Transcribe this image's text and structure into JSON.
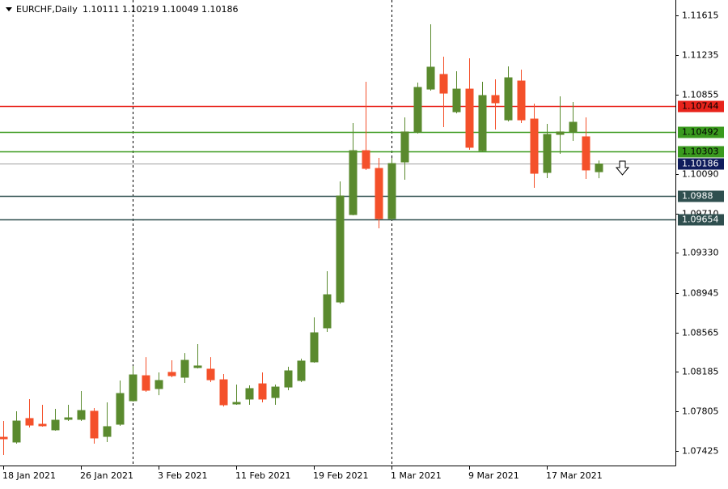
{
  "chart_data": {
    "type": "candlestick",
    "title": "EURCHF,Daily",
    "categories": [
      "18 Jan 2021",
      null,
      null,
      null,
      null,
      null,
      "26 Jan 2021",
      null,
      null,
      null,
      null,
      null,
      "3 Feb 2021",
      null,
      null,
      null,
      null,
      null,
      "11 Feb 2021",
      null,
      null,
      null,
      null,
      null,
      "19 Feb 2021",
      null,
      null,
      null,
      null,
      null,
      "1 Mar 2021",
      null,
      null,
      null,
      null,
      null,
      "9 Mar 2021",
      null,
      null,
      null,
      null,
      null,
      "17 Mar 2021",
      null,
      null,
      null,
      null
    ],
    "open": [
      1.07557,
      1.07511,
      1.07737,
      1.07682,
      1.07628,
      1.07729,
      1.07729,
      1.07807,
      1.07565,
      1.07682,
      1.07908,
      1.08149,
      1.08025,
      1.08181,
      1.08134,
      1.08227,
      1.08212,
      1.0811,
      1.07877,
      1.07924,
      1.08071,
      1.07939,
      1.0804,
      1.08103,
      1.08282,
      1.08609,
      1.08858,
      1.09699,
      1.10314,
      1.10143,
      1.0966,
      1.10205,
      1.10494,
      1.10906,
      1.11047,
      1.10688,
      1.10906,
      1.10314,
      1.10844,
      1.1061,
      1.10984,
      1.10618,
      1.10104,
      1.1047,
      1.10494,
      1.10447,
      1.10111
    ],
    "high": [
      1.07713,
      1.07807,
      1.07924,
      1.07869,
      1.0783,
      1.07869,
      1.08001,
      1.07838,
      1.07892,
      1.08103,
      1.08243,
      1.08328,
      1.08181,
      1.08297,
      1.08367,
      1.08453,
      1.08328,
      1.08165,
      1.08064,
      1.08056,
      1.08181,
      1.08064,
      1.08235,
      1.08313,
      1.0871,
      1.09154,
      1.10018,
      1.10579,
      1.10976,
      1.10244,
      1.10244,
      1.10634,
      1.10969,
      1.11529,
      1.11218,
      1.11078,
      1.11202,
      1.10976,
      1.11,
      1.11124,
      1.11093,
      1.10766,
      1.10571,
      1.10836,
      1.10782,
      1.10634,
      1.10219
    ],
    "low": [
      1.07386,
      1.07495,
      1.07651,
      1.07659,
      1.0762,
      1.07713,
      1.07713,
      1.07495,
      1.07511,
      1.07667,
      1.079,
      1.07994,
      1.07962,
      1.08134,
      1.08079,
      1.08219,
      1.08087,
      1.07853,
      1.07869,
      1.07869,
      1.07892,
      1.07869,
      1.08009,
      1.08087,
      1.08274,
      1.0857,
      1.08842,
      1.09691,
      1.10128,
      1.09567,
      1.09645,
      1.10034,
      1.10478,
      1.10891,
      1.1054,
      1.10673,
      1.10322,
      1.10299,
      1.10517,
      1.10595,
      1.10579,
      1.09956,
      1.1005,
      1.10283,
      1.10408,
      1.10042,
      1.10049
    ],
    "close": [
      1.07542,
      1.07713,
      1.07674,
      1.07667,
      1.07721,
      1.07744,
      1.07814,
      1.0755,
      1.07659,
      1.07978,
      1.08157,
      1.08009,
      1.08103,
      1.08149,
      1.08297,
      1.08243,
      1.0811,
      1.07869,
      1.07892,
      1.08025,
      1.07924,
      1.0804,
      1.08196,
      1.0829,
      1.08562,
      1.08928,
      1.09878,
      1.10314,
      1.10143,
      1.0966,
      1.1019,
      1.10494,
      1.10922,
      1.11117,
      1.10867,
      1.10906,
      1.10346,
      1.10844,
      1.10774,
      1.11015,
      1.1061,
      1.10096,
      1.1047,
      1.10494,
      1.10587,
      1.10128,
      1.10186
    ],
    "up_color": "#5a8a2e",
    "down_color": "#f4502a",
    "ylim": [
      1.07285,
      1.11763
    ],
    "yticks": [
      1.11615,
      1.11235,
      1.10855,
      {
        "value": 1.1009,
        "label": "1.10090"
      },
      {
        "value": 1.0971,
        "label": "1.09710"
      },
      {
        "value": 1.0933,
        "label": "1.09330"
      },
      1.08945,
      1.08565,
      1.08185,
      1.07805,
      1.07425
    ],
    "levels": [
      {
        "value": 1.10744,
        "color": "#e8231b",
        "text_color": "#000000"
      },
      {
        "value": 1.10492,
        "color": "#3a9a1e",
        "text_color": "#000000"
      },
      {
        "value": 1.10303,
        "color": "#3a9a1e",
        "text_color": "#000000"
      },
      {
        "value": 1.0988,
        "color": "#2f4f4f",
        "text_color": "#ffffff"
      },
      {
        "value": 1.09654,
        "color": "#2f4f4f",
        "text_color": "#ffffff"
      }
    ],
    "last_price_color": "#0f1b5c"
  }
}
